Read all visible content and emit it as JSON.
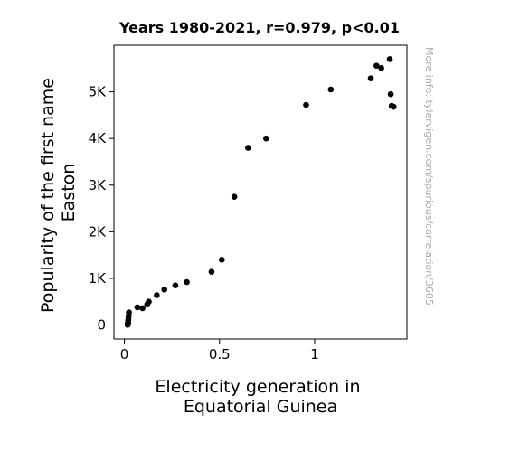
{
  "chart_data": {
    "type": "scatter",
    "title": "Years 1980-2021, r=0.979, p<0.01",
    "xlabel": [
      "Electricity generation in",
      "Equatorial Guinea"
    ],
    "ylabel": [
      "Popularity of the first name",
      "Easton"
    ],
    "xlim": [
      -0.055,
      1.485
    ],
    "ylim": [
      -300,
      6000
    ],
    "x_ticks": [
      {
        "value": 0,
        "label": "0"
      },
      {
        "value": 0.5,
        "label": "0.5"
      },
      {
        "value": 1,
        "label": "1"
      }
    ],
    "y_ticks": [
      {
        "value": 0,
        "label": "0"
      },
      {
        "value": 1000,
        "label": "1K"
      },
      {
        "value": 2000,
        "label": "2K"
      },
      {
        "value": 3000,
        "label": "3K"
      },
      {
        "value": 4000,
        "label": "4K"
      },
      {
        "value": 5000,
        "label": "5K"
      }
    ],
    "grid": false,
    "marker_color": "#000000",
    "points": [
      {
        "x": 0.017,
        "y": 5
      },
      {
        "x": 0.017,
        "y": 10
      },
      {
        "x": 0.018,
        "y": 15
      },
      {
        "x": 0.018,
        "y": 20
      },
      {
        "x": 0.019,
        "y": 40
      },
      {
        "x": 0.019,
        "y": 60
      },
      {
        "x": 0.02,
        "y": 90
      },
      {
        "x": 0.021,
        "y": 130
      },
      {
        "x": 0.022,
        "y": 190
      },
      {
        "x": 0.024,
        "y": 270
      },
      {
        "x": 0.068,
        "y": 380
      },
      {
        "x": 0.095,
        "y": 360
      },
      {
        "x": 0.12,
        "y": 440
      },
      {
        "x": 0.128,
        "y": 500
      },
      {
        "x": 0.17,
        "y": 640
      },
      {
        "x": 0.21,
        "y": 760
      },
      {
        "x": 0.268,
        "y": 850
      },
      {
        "x": 0.328,
        "y": 920
      },
      {
        "x": 0.458,
        "y": 1140
      },
      {
        "x": 0.512,
        "y": 1400
      },
      {
        "x": 0.578,
        "y": 2750
      },
      {
        "x": 0.65,
        "y": 3800
      },
      {
        "x": 0.745,
        "y": 4000
      },
      {
        "x": 0.955,
        "y": 4720
      },
      {
        "x": 1.085,
        "y": 5050
      },
      {
        "x": 1.295,
        "y": 5290
      },
      {
        "x": 1.325,
        "y": 5560
      },
      {
        "x": 1.35,
        "y": 5510
      },
      {
        "x": 1.395,
        "y": 5700
      },
      {
        "x": 1.4,
        "y": 4950
      },
      {
        "x": 1.405,
        "y": 4700
      },
      {
        "x": 1.415,
        "y": 4680
      }
    ]
  },
  "watermark": "More info: tylervigen.com/spurious/correlation/3605"
}
